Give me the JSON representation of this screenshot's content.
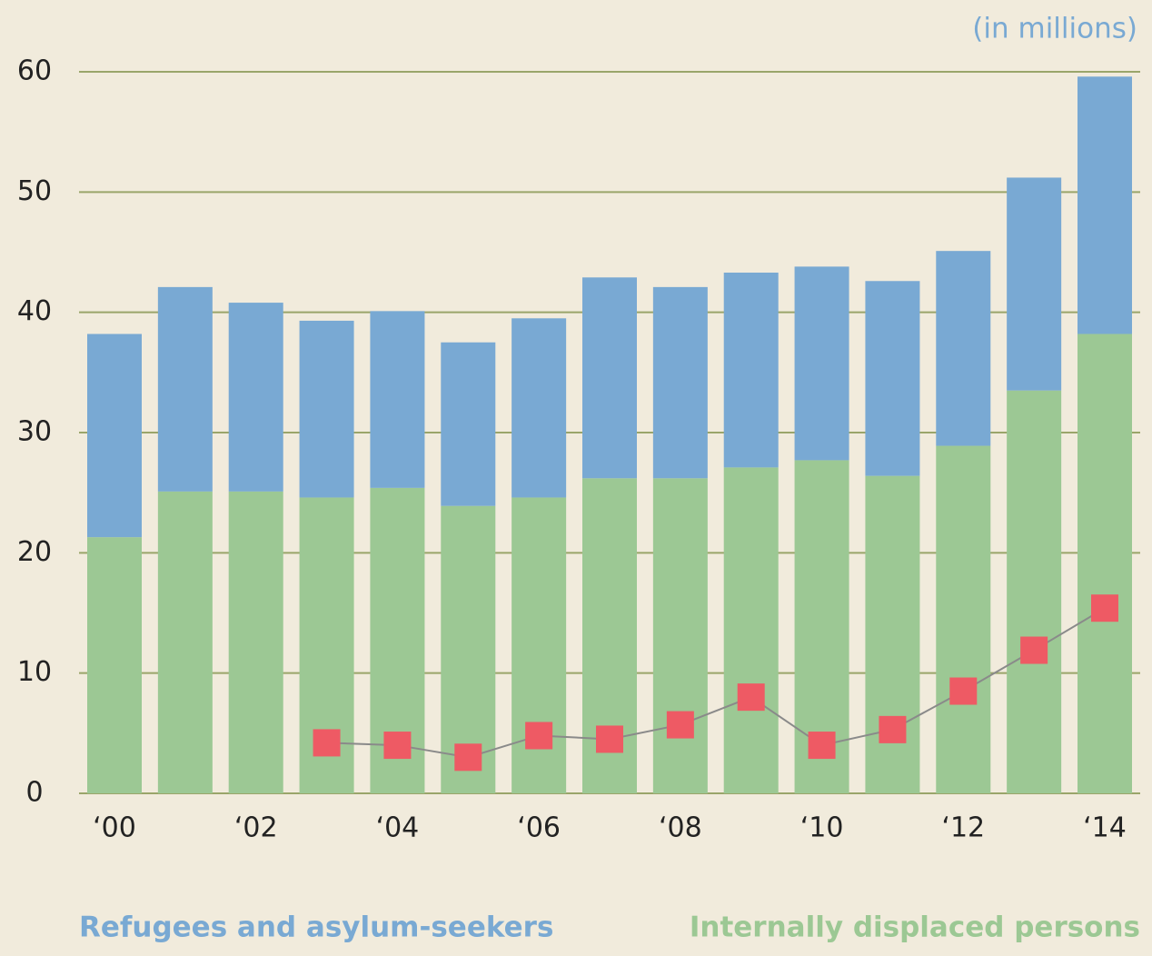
{
  "chart_data": {
    "type": "bar",
    "stacked": true,
    "unit_note": "(in millions)",
    "categories": [
      "‘00",
      null,
      "‘02",
      null,
      "‘04",
      null,
      "‘06",
      null,
      "‘08",
      null,
      "‘10",
      null,
      "‘12",
      null,
      "‘14"
    ],
    "series": [
      {
        "name": "Internally displaced persons",
        "color": "#9cc894",
        "values": [
          21.3,
          25.1,
          25.1,
          24.6,
          25.4,
          23.9,
          24.6,
          26.2,
          26.2,
          27.1,
          27.7,
          26.4,
          28.9,
          33.5,
          38.2
        ]
      },
      {
        "name": "Refugees and asylum-seekers",
        "color": "#79a9d3",
        "values": [
          16.9,
          17.0,
          15.7,
          14.7,
          14.7,
          13.6,
          14.9,
          16.7,
          15.9,
          16.2,
          16.1,
          16.2,
          16.2,
          17.7,
          21.4
        ]
      },
      {
        "type": "line",
        "color": "#ee5a64",
        "line_color": "#8a8a8a",
        "values": [
          null,
          null,
          null,
          4.2,
          4.0,
          3.0,
          4.8,
          4.5,
          5.7,
          8.0,
          4.0,
          5.3,
          8.5,
          11.9,
          15.4
        ]
      }
    ],
    "ylim": [
      0,
      60
    ],
    "yticks": [
      0,
      10,
      20,
      30,
      40,
      50,
      60
    ],
    "grid": true,
    "grid_color": "#9aa56a"
  }
}
